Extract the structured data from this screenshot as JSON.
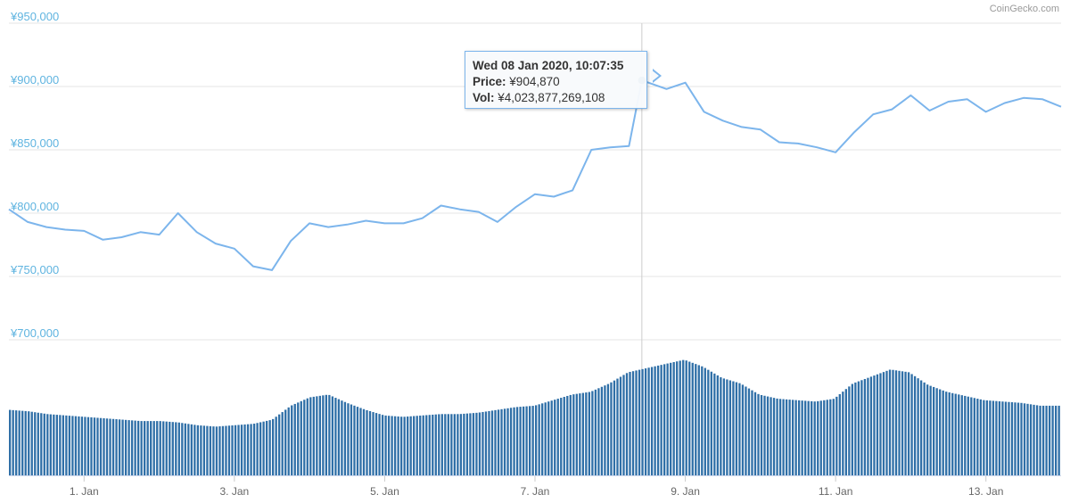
{
  "credit": "CoinGecko.com",
  "tooltip": {
    "date": "Wed 08 Jan 2020, 10:07:35",
    "price_label": "Price:",
    "price_value": "¥904,870",
    "vol_label": "Vol:",
    "vol_value": "¥4,023,877,269,108"
  },
  "colors": {
    "line": "#7cb5ec",
    "bar": "#2f6fa7",
    "axis_text": "#5fb4e0",
    "grid": "#e6e6e6",
    "marker": "#1f5f9a"
  },
  "chart_data": {
    "type": "line",
    "title": "",
    "ylabel": "",
    "xlabel": "",
    "yticks": [
      "¥700,000",
      "¥750,000",
      "¥800,000",
      "¥850,000",
      "¥900,000",
      "¥950,000"
    ],
    "ylim": [
      700000,
      950000
    ],
    "xticks": [
      "1. Jan",
      "3. Jan",
      "5. Jan",
      "7. Jan",
      "9. Jan",
      "11. Jan",
      "13. Jan"
    ],
    "x_start": "2019-12-31",
    "x_end": "2020-01-14",
    "grid": true,
    "highlight": {
      "x": "2020-01-08T10:07:35",
      "y": 904870,
      "volume": 4023877269108
    },
    "series": [
      {
        "kind": "price",
        "x": [
          "2019-12-31T00:00",
          "2019-12-31T06:00",
          "2019-12-31T12:00",
          "2019-12-31T18:00",
          "2020-01-01T00:00",
          "2020-01-01T06:00",
          "2020-01-01T12:00",
          "2020-01-01T18:00",
          "2020-01-02T00:00",
          "2020-01-02T06:00",
          "2020-01-02T12:00",
          "2020-01-02T18:00",
          "2020-01-03T00:00",
          "2020-01-03T06:00",
          "2020-01-03T12:00",
          "2020-01-03T18:00",
          "2020-01-04T00:00",
          "2020-01-04T06:00",
          "2020-01-04T12:00",
          "2020-01-04T18:00",
          "2020-01-05T00:00",
          "2020-01-05T06:00",
          "2020-01-05T12:00",
          "2020-01-05T18:00",
          "2020-01-06T00:00",
          "2020-01-06T06:00",
          "2020-01-06T12:00",
          "2020-01-06T18:00",
          "2020-01-07T00:00",
          "2020-01-07T06:00",
          "2020-01-07T12:00",
          "2020-01-07T18:00",
          "2020-01-08T00:00",
          "2020-01-08T06:00",
          "2020-01-08T10:07",
          "2020-01-08T18:00",
          "2020-01-09T00:00",
          "2020-01-09T06:00",
          "2020-01-09T12:00",
          "2020-01-09T18:00",
          "2020-01-10T00:00",
          "2020-01-10T06:00",
          "2020-01-10T12:00",
          "2020-01-10T18:00",
          "2020-01-11T00:00",
          "2020-01-11T06:00",
          "2020-01-11T12:00",
          "2020-01-11T18:00",
          "2020-01-12T00:00",
          "2020-01-12T06:00",
          "2020-01-12T12:00",
          "2020-01-12T18:00",
          "2020-01-13T00:00",
          "2020-01-13T06:00",
          "2020-01-13T12:00",
          "2020-01-13T18:00",
          "2020-01-14T00:00"
        ],
        "values": [
          803000,
          793000,
          789000,
          787000,
          786000,
          779000,
          781000,
          785000,
          783000,
          800000,
          785000,
          776000,
          772000,
          758000,
          755000,
          778000,
          792000,
          789000,
          791000,
          794000,
          792000,
          792000,
          796000,
          806000,
          803000,
          801000,
          793000,
          805000,
          815000,
          813000,
          818000,
          850000,
          852000,
          853000,
          904870,
          898000,
          903000,
          880000,
          873000,
          868000,
          866000,
          856000,
          855000,
          852000,
          848000,
          864000,
          878000,
          882000,
          893000,
          881000,
          888000,
          890000,
          880000,
          887000,
          891000,
          890000,
          884000
        ]
      },
      {
        "kind": "volume",
        "values": [
          0.47,
          0.46,
          0.44,
          0.43,
          0.42,
          0.41,
          0.4,
          0.39,
          0.39,
          0.38,
          0.36,
          0.35,
          0.36,
          0.37,
          0.4,
          0.5,
          0.56,
          0.58,
          0.52,
          0.47,
          0.43,
          0.42,
          0.43,
          0.44,
          0.44,
          0.45,
          0.47,
          0.49,
          0.5,
          0.54,
          0.58,
          0.6,
          0.66,
          0.74,
          0.77,
          0.8,
          0.83,
          0.78,
          0.7,
          0.66,
          0.58,
          0.55,
          0.54,
          0.53,
          0.55,
          0.66,
          0.71,
          0.76,
          0.74,
          0.65,
          0.6,
          0.57,
          0.54,
          0.53,
          0.52,
          0.5,
          0.5
        ]
      }
    ]
  }
}
